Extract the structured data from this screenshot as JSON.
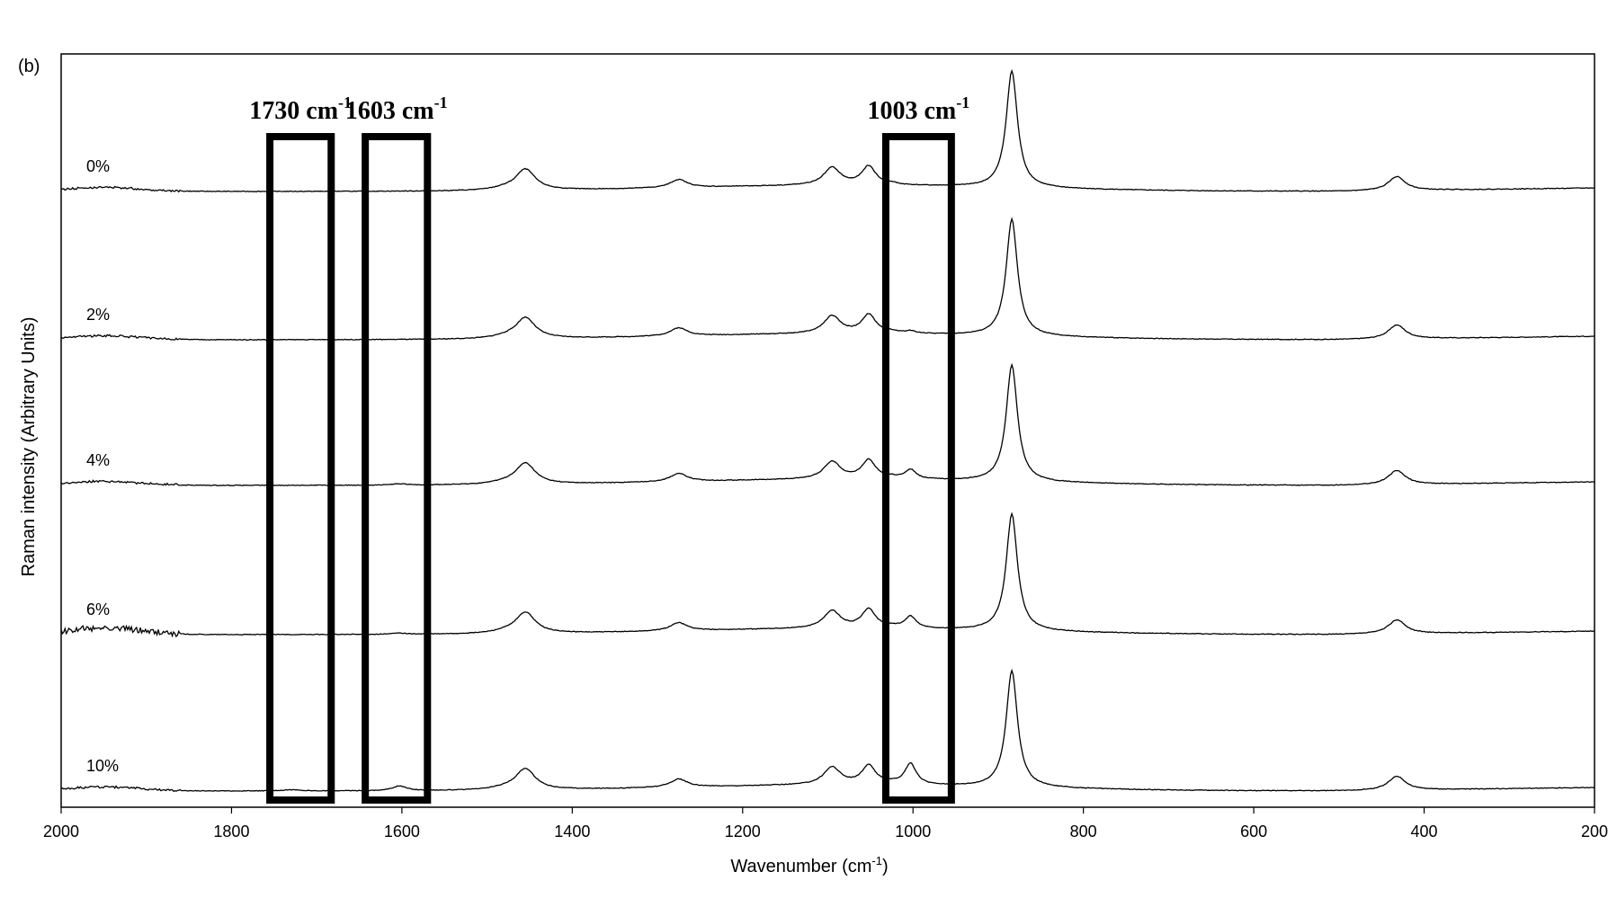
{
  "panel_label": "(b)",
  "chart_data": {
    "type": "line",
    "title": "",
    "xlabel": "Wavenumber (cm-1)",
    "xlabel_parts": {
      "main": "Wavenumber (cm",
      "sup": "-1",
      "close": ")"
    },
    "ylabel": "Raman intensity (Arbitrary Units)",
    "xlim": [
      2000,
      200
    ],
    "x_reversed": true,
    "xticks": [
      2000,
      1800,
      1600,
      1400,
      1200,
      1000,
      800,
      600,
      400,
      200
    ],
    "xtick_labels": [
      "2000",
      "1800",
      "1600",
      "1400",
      "1200",
      "1000",
      "800",
      "600",
      "400",
      "200"
    ],
    "grid": false,
    "y_scale_note": "stacked spectra, arbitrary units",
    "series": [
      {
        "name": "0%",
        "offset": 4,
        "peak_1003": 0.0,
        "peak_1603": 0.0,
        "peak_1730": 0.0
      },
      {
        "name": "2%",
        "offset": 3,
        "peak_1003": 0.02,
        "peak_1603": 0.0,
        "peak_1730": 0.0
      },
      {
        "name": "4%",
        "offset": 2,
        "peak_1003": 0.08,
        "peak_1603": 0.01,
        "peak_1730": 0.0
      },
      {
        "name": "6%",
        "offset": 1,
        "peak_1003": 0.1,
        "peak_1603": 0.01,
        "peak_1730": 0.0
      },
      {
        "name": "10%",
        "offset": 0,
        "peak_1003": 0.18,
        "peak_1603": 0.04,
        "peak_1730": 0.01
      }
    ],
    "common_peaks": [
      {
        "x": 1455,
        "amp": 0.18,
        "w": 14
      },
      {
        "x": 1275,
        "amp": 0.07,
        "w": 12
      },
      {
        "x": 1095,
        "amp": 0.15,
        "w": 12
      },
      {
        "x": 1052,
        "amp": 0.16,
        "w": 10
      },
      {
        "x": 884,
        "amp": 1.0,
        "w": 8
      },
      {
        "x": 432,
        "amp": 0.12,
        "w": 12
      }
    ],
    "annotations": [
      {
        "label": "1730 cm",
        "sup": "-1",
        "x_from": 1755,
        "x_to": 1683
      },
      {
        "label": "1603 cm",
        "sup": "-1",
        "x_from": 1643,
        "x_to": 1570
      },
      {
        "label": "1003 cm",
        "sup": "-1",
        "x_from": 1032,
        "x_to": 955
      }
    ]
  }
}
